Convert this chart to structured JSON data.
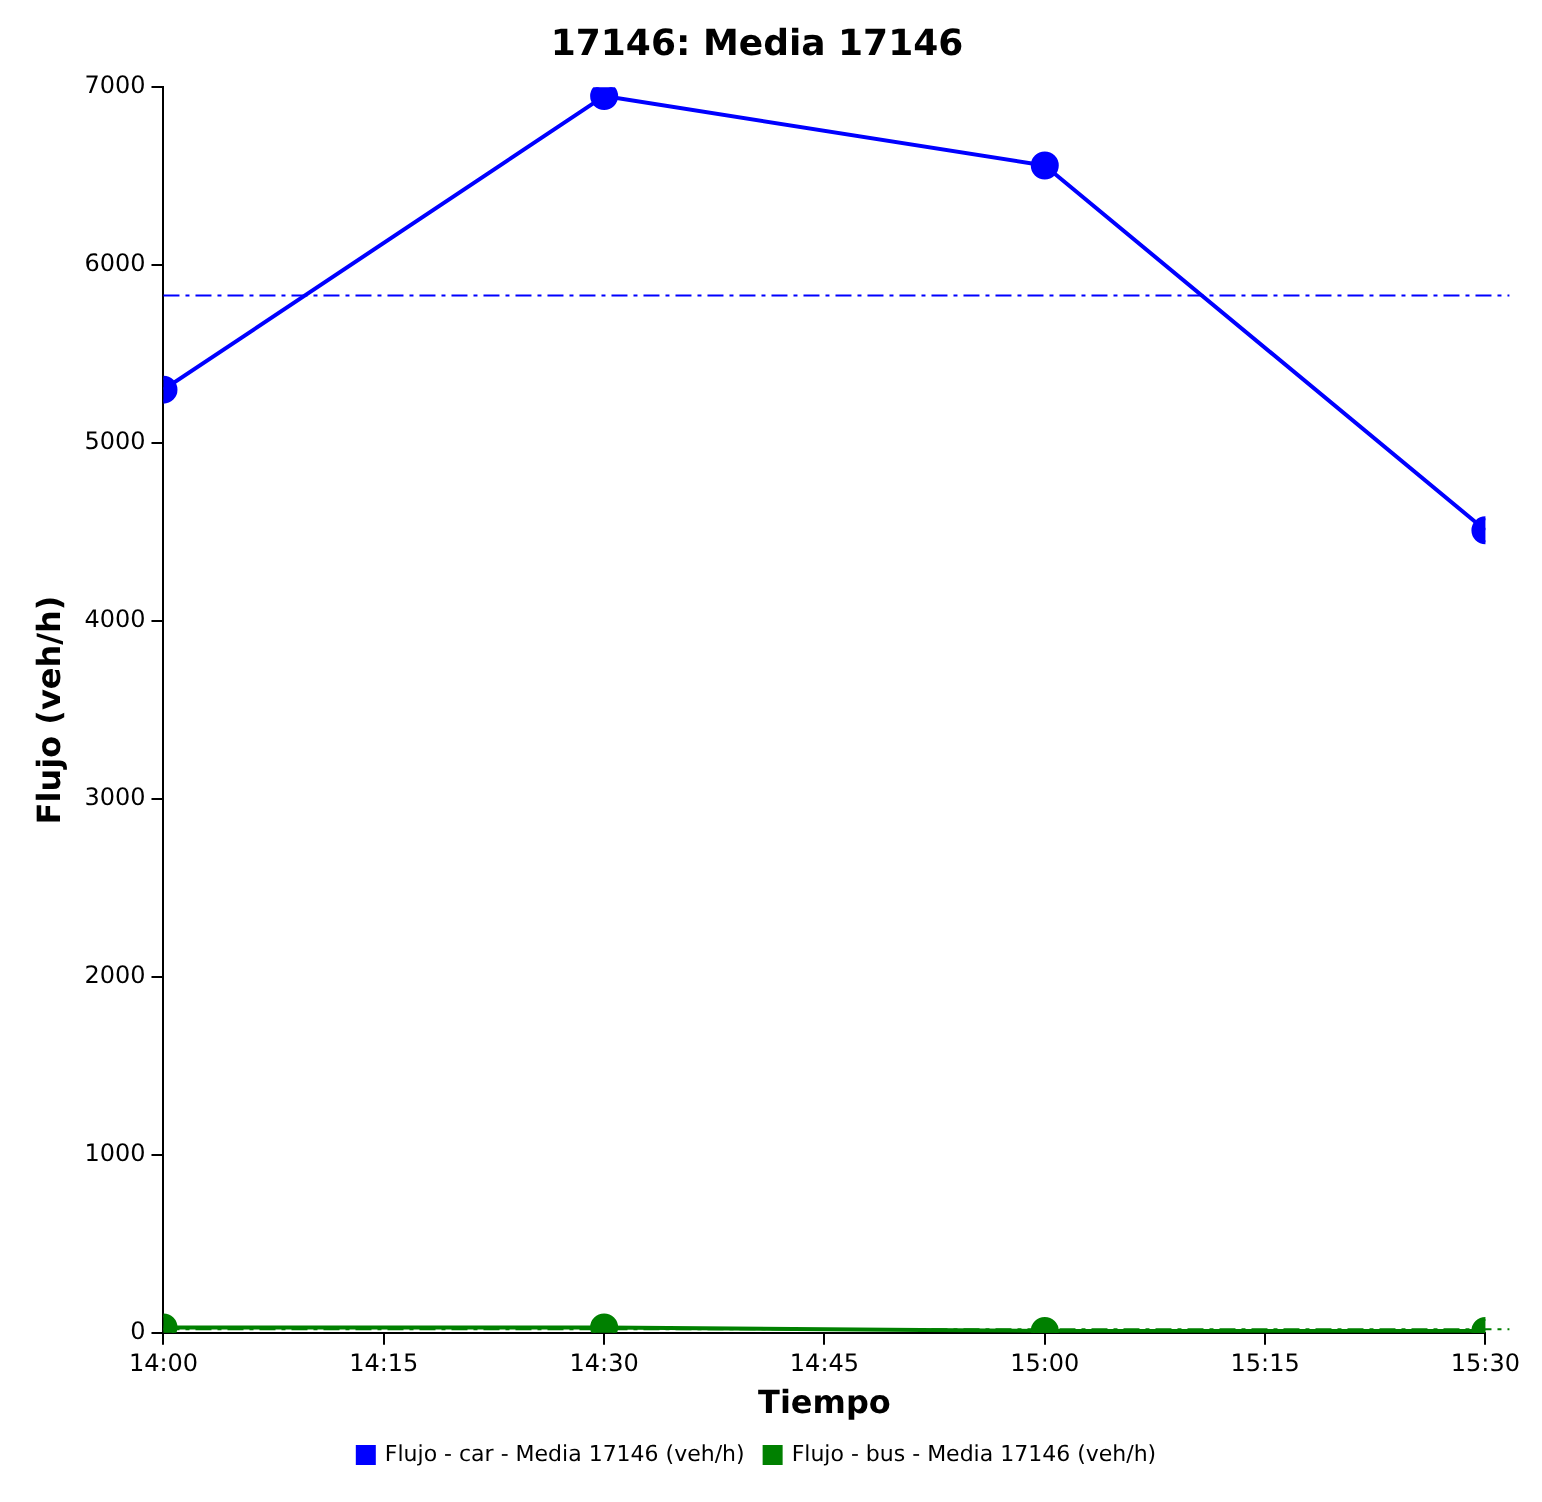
{
  "chart_data": {
    "type": "line",
    "title": "17146: Media 17146",
    "xlabel": "Tiempo",
    "ylabel": "Flujo (veh/h)",
    "x": [
      14,
      14.5,
      15,
      15.5
    ],
    "series": [
      {
        "name": "Flujo - car - Media 17146 (veh/h)",
        "color": "#0000ff",
        "values": [
          5300,
          6950,
          6560,
          4510
        ]
      },
      {
        "name": "Flujo - bus - Media 17146 (veh/h)",
        "color": "#008000",
        "values": [
          30,
          30,
          10,
          10
        ]
      }
    ],
    "xlim": [
      14,
      15.5
    ],
    "xticks": [
      {
        "value": 14,
        "label": "14:00"
      },
      {
        "value": 14.25,
        "label": "14:15"
      },
      {
        "value": 14.5,
        "label": "14:30"
      },
      {
        "value": 14.75,
        "label": "14:45"
      },
      {
        "value": 15,
        "label": "15:00"
      },
      {
        "value": 15.25,
        "label": "15:15"
      },
      {
        "value": 15.5,
        "label": "15:30"
      }
    ],
    "ylim": [
      0,
      7000
    ],
    "yticks": [
      0,
      1000,
      2000,
      3000,
      4000,
      5000,
      6000,
      7000
    ],
    "ref_lines": [
      {
        "axis": "y",
        "value": 5830,
        "color": "#0000ff",
        "line_style": "dashed"
      },
      {
        "axis": "y",
        "value": 20,
        "color": "#008000",
        "line_style": "dashed"
      }
    ],
    "grid": false,
    "legend": "bottom",
    "marker": "circle",
    "line_style": "solid"
  }
}
